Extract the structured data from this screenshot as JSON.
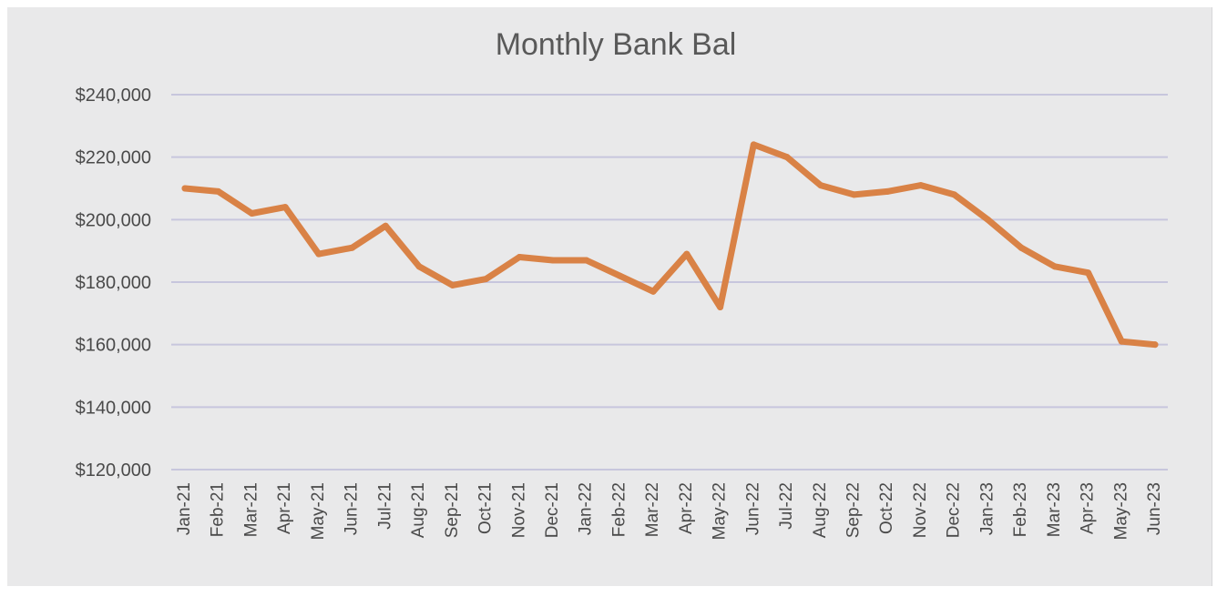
{
  "chart_data": {
    "type": "line",
    "title": "Monthly Bank Bal",
    "xlabel": "",
    "ylabel": "",
    "ylim": [
      120000,
      240000
    ],
    "yticks": [
      240000,
      220000,
      200000,
      180000,
      160000,
      140000,
      120000
    ],
    "ytick_labels": [
      "$240,000",
      "$220,000",
      "$200,000",
      "$180,000",
      "$160,000",
      "$140,000",
      "$120,000"
    ],
    "categories": [
      "Jan-21",
      "Feb-21",
      "Mar-21",
      "Apr-21",
      "May-21",
      "Jun-21",
      "Jul-21",
      "Aug-21",
      "Sep-21",
      "Oct-21",
      "Nov-21",
      "Dec-21",
      "Jan-22",
      "Feb-22",
      "Mar-22",
      "Apr-22",
      "May-22",
      "Jun-22",
      "Jul-22",
      "Aug-22",
      "Sep-22",
      "Oct-22",
      "Nov-22",
      "Dec-22",
      "Jan-23",
      "Feb-23",
      "Mar-23",
      "Apr-23",
      "May-23",
      "Jun-23"
    ],
    "series": [
      {
        "color": "#d98246",
        "values": [
          210000,
          209000,
          202000,
          204000,
          189000,
          191000,
          198000,
          185000,
          179000,
          181000,
          188000,
          187000,
          187000,
          182000,
          177000,
          189000,
          172000,
          224000,
          220000,
          211000,
          208000,
          209000,
          211000,
          208000,
          200000,
          191000,
          185000,
          183000,
          161000,
          160000
        ]
      }
    ],
    "grid": true,
    "legend": "none"
  }
}
